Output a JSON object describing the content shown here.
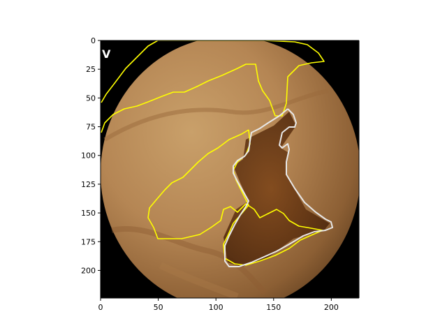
{
  "x_axis": {
    "ticks": [
      {
        "label": "0",
        "value": 0
      },
      {
        "label": "50",
        "value": 50
      },
      {
        "label": "100",
        "value": 100
      },
      {
        "label": "150",
        "value": 150
      },
      {
        "label": "200",
        "value": 200
      }
    ],
    "range": [
      0,
      224
    ]
  },
  "y_axis": {
    "ticks": [
      {
        "label": "0",
        "value": 0
      },
      {
        "label": "25",
        "value": 25
      },
      {
        "label": "50",
        "value": 50
      },
      {
        "label": "75",
        "value": 75
      },
      {
        "label": "100",
        "value": 100
      },
      {
        "label": "125",
        "value": 125
      },
      {
        "label": "150",
        "value": 150
      },
      {
        "label": "175",
        "value": 175
      },
      {
        "label": "200",
        "value": 200
      }
    ],
    "range": [
      0,
      224
    ]
  },
  "colors": {
    "yellow_contour": "#ffff00",
    "white_contour": "#e8e8e8",
    "background_black": "#000000"
  },
  "image_corner_mark": "V"
}
